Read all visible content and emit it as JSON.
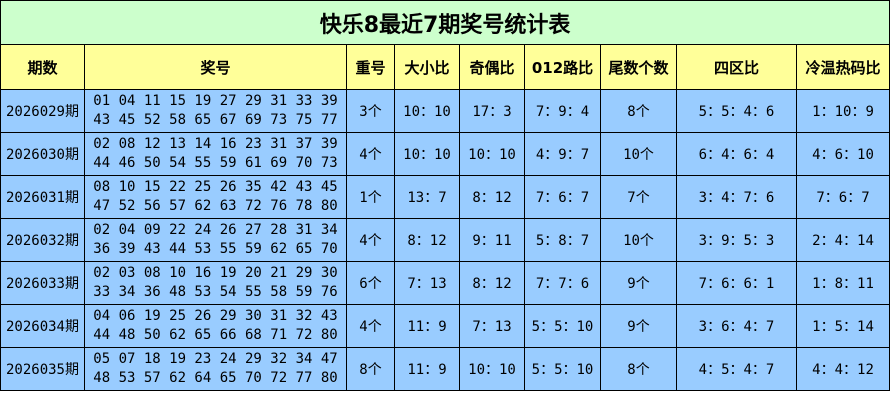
{
  "title": "快乐8最近7期奖号统计表",
  "headers": [
    "期数",
    "奖号",
    "重号",
    "大小比",
    "奇偶比",
    "012路比",
    "尾数个数",
    "四区比",
    "冷温热码比"
  ],
  "rows": [
    {
      "issue": "2026029期",
      "line1": "01 04 11 15 19 27 29 31 33 39",
      "line2": "43 45 52 58 65 67 69 73 75 77",
      "repeat": "3个",
      "big_small": "10：10",
      "odd_even": "17：3",
      "road012": "7：9：4",
      "tail_count": "8个",
      "zones": "5：5：4：6",
      "cold_warm_hot": "1：10：9"
    },
    {
      "issue": "2026030期",
      "line1": "02 08 12 13 14 16 23 31 37 39",
      "line2": "44 46 50 54 55 59 61 69 70 73",
      "repeat": "4个",
      "big_small": "10：10",
      "odd_even": "10：10",
      "road012": "4：9：7",
      "tail_count": "10个",
      "zones": "6：4：6：4",
      "cold_warm_hot": "4：6：10"
    },
    {
      "issue": "2026031期",
      "line1": "08 10 15 22 25 26 35 42 43 45",
      "line2": "47 52 56 57 62 63 72 76 78 80",
      "repeat": "1个",
      "big_small": "13：7",
      "odd_even": "8：12",
      "road012": "7：6：7",
      "tail_count": "7个",
      "zones": "3：4：7：6",
      "cold_warm_hot": "7：6：7"
    },
    {
      "issue": "2026032期",
      "line1": "02 04 09 22 24 26 27 28 31 34",
      "line2": "36 39 43 44 53 55 59 62 65 70",
      "repeat": "4个",
      "big_small": "8：12",
      "odd_even": "9：11",
      "road012": "5：8：7",
      "tail_count": "10个",
      "zones": "3：9：5：3",
      "cold_warm_hot": "2：4：14"
    },
    {
      "issue": "2026033期",
      "line1": "02 03 08 10 16 19 20 21 29 30",
      "line2": "33 34 36 48 53 54 55 58 59 76",
      "repeat": "6个",
      "big_small": "7：13",
      "odd_even": "8：12",
      "road012": "7：7：6",
      "tail_count": "9个",
      "zones": "7：6：6：1",
      "cold_warm_hot": "1：8：11"
    },
    {
      "issue": "2026034期",
      "line1": "04 06 19 25 26 29 30 31 32 43",
      "line2": "44 48 50 62 65 66 68 71 72 80",
      "repeat": "4个",
      "big_small": "11：9",
      "odd_even": "7：13",
      "road012": "5：5：10",
      "tail_count": "9个",
      "zones": "3：6：4：7",
      "cold_warm_hot": "1：5：14"
    },
    {
      "issue": "2026035期",
      "line1": "05 07 18 19 23 24 29 32 34 47",
      "line2": "48 53 57 62 64 65 70 72 77 80",
      "repeat": "8个",
      "big_small": "11：9",
      "odd_even": "10：10",
      "road012": "5：5：10",
      "tail_count": "8个",
      "zones": "4：5：4：7",
      "cold_warm_hot": "4：4：12"
    }
  ]
}
